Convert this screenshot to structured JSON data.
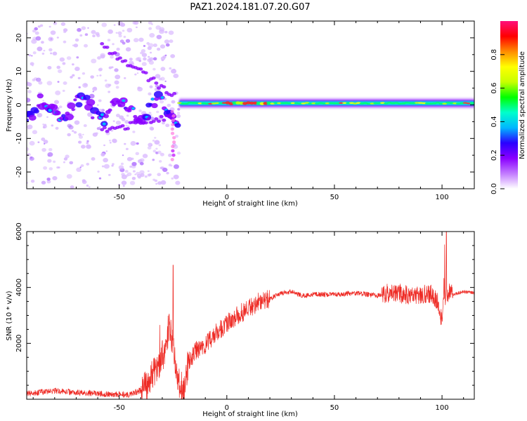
{
  "figure": {
    "title": "PAZ1.2024.181.07.20.G07"
  },
  "chart_data": [
    {
      "type": "heatmap",
      "xlabel": "Height of straight line (km)",
      "ylabel": "Frequency (Hz)",
      "xlim": [
        -93,
        115
      ],
      "ylim": [
        -25,
        25
      ],
      "x_ticks": [
        -50,
        0,
        50,
        100
      ],
      "y_ticks": [
        -20,
        -10,
        0,
        10,
        20
      ],
      "colorbar": {
        "label": "Normalized spectral amplitude",
        "range": [
          0,
          1
        ],
        "ticks": [
          0.0,
          0.2,
          0.4,
          0.6,
          0.8
        ],
        "colors": [
          "#ffffff",
          "#c27bff",
          "#8a00ff",
          "#2a00ff",
          "#00b7ff",
          "#00ffcc",
          "#00ff00",
          "#c8ff00",
          "#ffff00",
          "#ff8c00",
          "#ff0000",
          "#ff0f7b"
        ]
      },
      "features": [
        {
          "name": "noisy region",
          "x_range": [
            -93,
            -22
          ],
          "frequency_range": [
            -25,
            25
          ]
        },
        {
          "name": "stable tone",
          "x_range": [
            -22,
            115
          ],
          "frequency_center": 0.5,
          "peak_amplitude": 0.85
        }
      ]
    },
    {
      "type": "line",
      "xlabel": "Height of straight line (km)",
      "ylabel": "SNR (10 * v/v)",
      "xlim": [
        -93,
        115
      ],
      "ylim": [
        0,
        6000
      ],
      "x_ticks": [
        -50,
        0,
        50,
        100
      ],
      "y_ticks": [
        2000,
        4000,
        6000
      ],
      "color": "#ee2a24",
      "series": [
        {
          "x": [
            -93,
            -80,
            -60,
            -45,
            -38,
            -34,
            -30,
            -27,
            -25,
            -23,
            -20,
            -18,
            -15,
            -10,
            -5,
            0,
            5,
            10,
            15,
            20,
            25,
            30,
            35,
            40,
            50,
            60,
            70,
            75,
            80,
            85,
            90,
            95,
            98,
            100,
            101,
            103,
            105,
            110,
            115
          ],
          "y": [
            200,
            300,
            200,
            150,
            400,
            900,
            1500,
            2500,
            2200,
            600,
            300,
            1300,
            1700,
            1900,
            2400,
            2700,
            3000,
            3250,
            3500,
            3600,
            3800,
            3850,
            3700,
            3750,
            3750,
            3800,
            3700,
            3800,
            3800,
            3700,
            3750,
            3800,
            3500,
            2800,
            3600,
            3800,
            3750,
            3850,
            3800
          ]
        }
      ],
      "annotations": [
        {
          "x": -25,
          "y": 4800,
          "label": ""
        },
        {
          "x": 102,
          "y": 6000,
          "label": ""
        }
      ]
    }
  ]
}
